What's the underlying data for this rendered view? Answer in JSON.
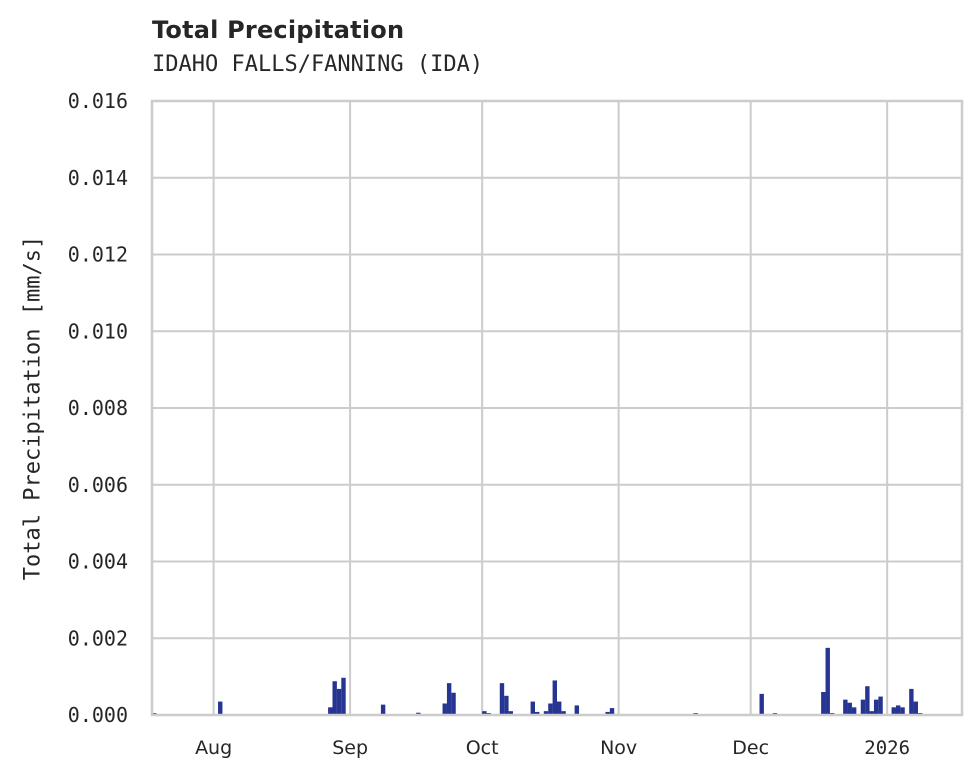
{
  "header": {
    "title": "Total Precipitation",
    "subtitle": "IDAHO FALLS/FANNING (IDA)"
  },
  "colors": {
    "bar": "#263591",
    "grid": "#cccccc",
    "text": "#262626"
  },
  "chart_data": {
    "type": "bar",
    "title": "Total Precipitation",
    "subtitle": "IDAHO FALLS/FANNING (IDA)",
    "xlabel": "",
    "ylabel": "Total Precipitation [mm/s]",
    "ylim": [
      0,
      0.016
    ],
    "grid": true,
    "yticks": [
      "0.000",
      "0.002",
      "0.004",
      "0.006",
      "0.008",
      "0.010",
      "0.012",
      "0.014",
      "0.016"
    ],
    "xticks": [
      "Aug",
      "Sep",
      "Oct",
      "Nov",
      "Dec",
      "2026"
    ],
    "xrange": [
      "2025-07-18",
      "2026-01-18"
    ],
    "series": [
      {
        "name": "Total Precipitation",
        "points": [
          {
            "x": "2025-07-18",
            "y": 5e-05
          },
          {
            "x": "2025-08-02",
            "y": 0.00035
          },
          {
            "x": "2025-08-27",
            "y": 0.0002
          },
          {
            "x": "2025-08-28",
            "y": 0.00088
          },
          {
            "x": "2025-08-29",
            "y": 0.00068
          },
          {
            "x": "2025-08-30",
            "y": 0.00097
          },
          {
            "x": "2025-09-08",
            "y": 0.00027
          },
          {
            "x": "2025-09-16",
            "y": 6e-05
          },
          {
            "x": "2025-09-22",
            "y": 0.0003
          },
          {
            "x": "2025-09-23",
            "y": 0.00083
          },
          {
            "x": "2025-09-24",
            "y": 0.00058
          },
          {
            "x": "2025-10-01",
            "y": 0.0001
          },
          {
            "x": "2025-10-02",
            "y": 5e-05
          },
          {
            "x": "2025-10-05",
            "y": 0.00083
          },
          {
            "x": "2025-10-06",
            "y": 0.0005
          },
          {
            "x": "2025-10-07",
            "y": 0.0001
          },
          {
            "x": "2025-10-12",
            "y": 0.00035
          },
          {
            "x": "2025-10-13",
            "y": 8e-05
          },
          {
            "x": "2025-10-15",
            "y": 0.0001
          },
          {
            "x": "2025-10-16",
            "y": 0.0003
          },
          {
            "x": "2025-10-17",
            "y": 0.0009
          },
          {
            "x": "2025-10-18",
            "y": 0.00035
          },
          {
            "x": "2025-10-19",
            "y": 0.0001
          },
          {
            "x": "2025-10-22",
            "y": 0.00025
          },
          {
            "x": "2025-10-29",
            "y": 8e-05
          },
          {
            "x": "2025-10-30",
            "y": 0.00018
          },
          {
            "x": "2025-11-18",
            "y": 5e-05
          },
          {
            "x": "2025-12-03",
            "y": 0.00055
          },
          {
            "x": "2025-12-06",
            "y": 5e-05
          },
          {
            "x": "2025-12-17",
            "y": 0.0006
          },
          {
            "x": "2025-12-18",
            "y": 0.00175
          },
          {
            "x": "2025-12-19",
            "y": 5e-05
          },
          {
            "x": "2025-12-22",
            "y": 0.0004
          },
          {
            "x": "2025-12-23",
            "y": 0.00032
          },
          {
            "x": "2025-12-24",
            "y": 0.0002
          },
          {
            "x": "2025-12-26",
            "y": 0.0004
          },
          {
            "x": "2025-12-27",
            "y": 0.00075
          },
          {
            "x": "2025-12-28",
            "y": 0.0001
          },
          {
            "x": "2025-12-29",
            "y": 0.0004
          },
          {
            "x": "2025-12-30",
            "y": 0.00048
          },
          {
            "x": "2026-01-02",
            "y": 0.0002
          },
          {
            "x": "2026-01-03",
            "y": 0.00025
          },
          {
            "x": "2026-01-04",
            "y": 0.0002
          },
          {
            "x": "2026-01-06",
            "y": 0.00068
          },
          {
            "x": "2026-01-07",
            "y": 0.00035
          },
          {
            "x": "2026-01-08",
            "y": 5e-05
          }
        ]
      }
    ]
  }
}
